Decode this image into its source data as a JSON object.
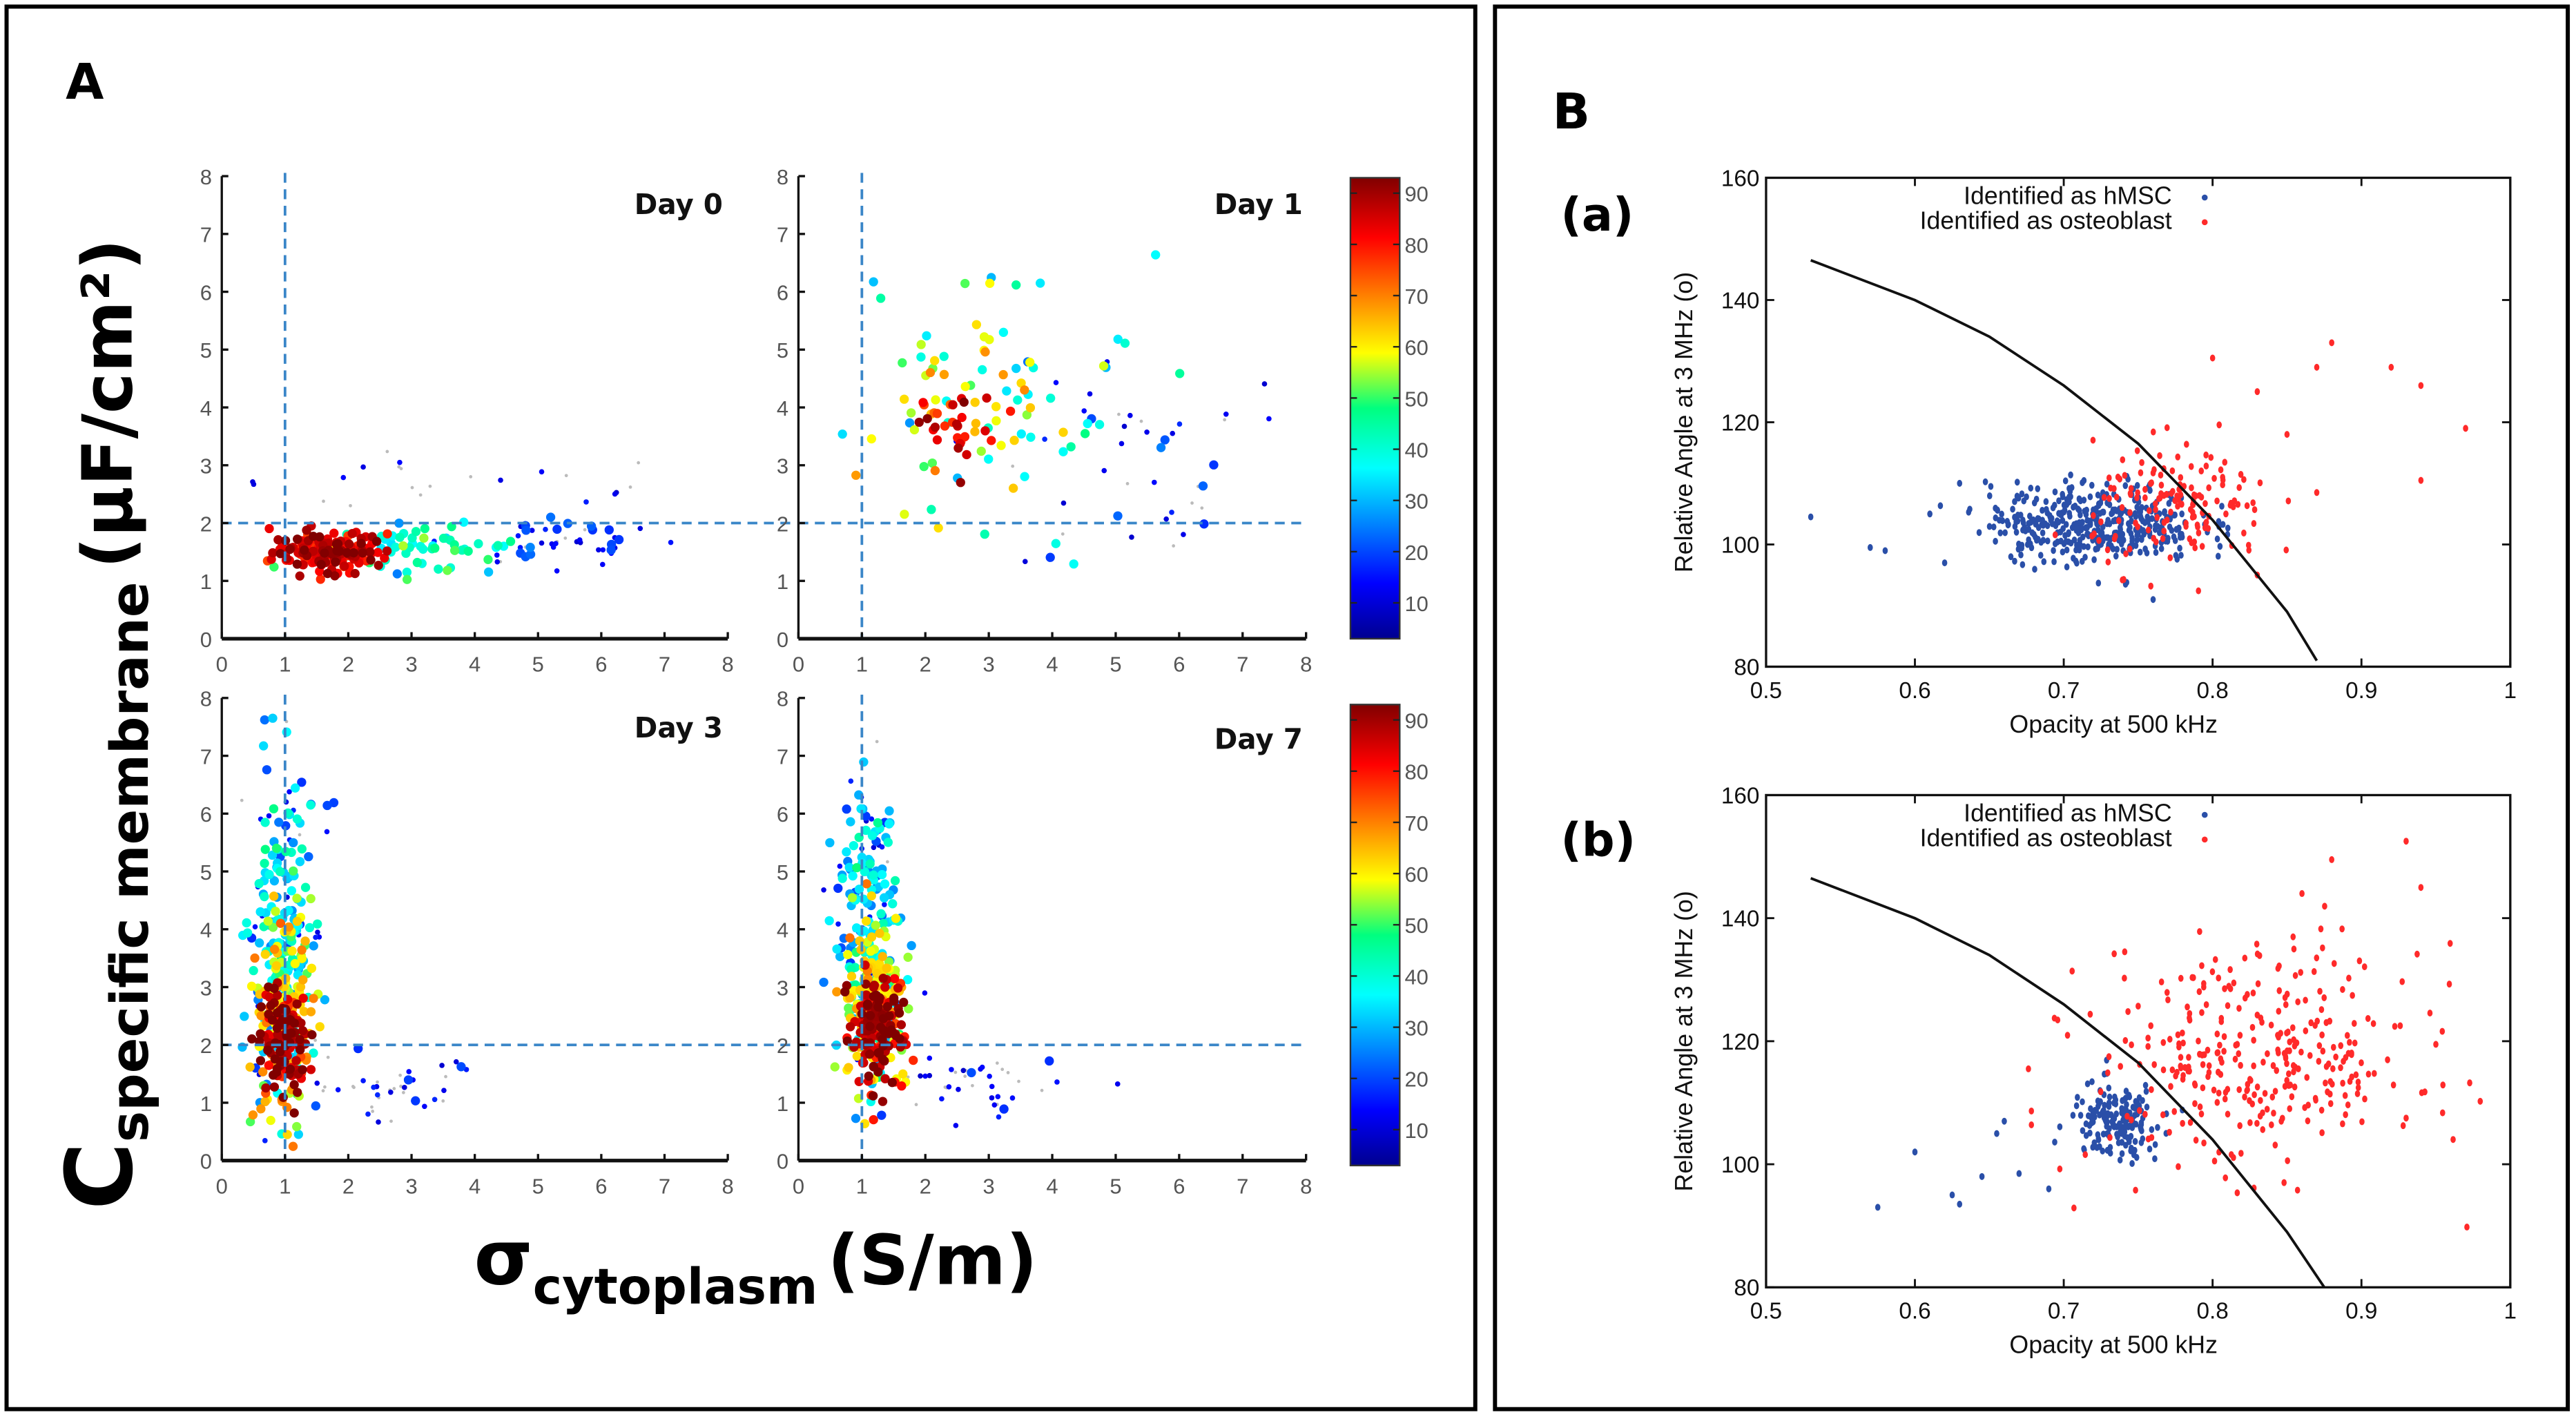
{
  "panel_A": {
    "label": "A",
    "ylabel_main": "C",
    "ylabel_sub": "specific membrane",
    "ylabel_unit": "(µF/cm²)",
    "xlabel_main": "σ",
    "xlabel_sub": "cytoplasm",
    "xlabel_unit": "(S/m)"
  },
  "panel_B": {
    "label": "B"
  },
  "chart_data": [
    {
      "type": "scatter",
      "title": "Day 0",
      "xlabel": "σ cytoplasm (S/m)",
      "ylabel": "C specific membrane (µF/cm²)",
      "xlim": [
        0,
        8
      ],
      "ylim": [
        0,
        8
      ],
      "xticks": [
        "0",
        "1",
        "2",
        "3",
        "4",
        "5",
        "6",
        "7",
        "8"
      ],
      "yticks": [
        "0",
        "1",
        "2",
        "3",
        "4",
        "5",
        "6",
        "7",
        "8"
      ],
      "reference_lines": {
        "x": 1,
        "y": 2
      },
      "color_scale": "density (jet)",
      "clusters": [
        {
          "x": 1.7,
          "y": 1.5,
          "sx": 0.45,
          "sy": 0.18,
          "n": 160,
          "density": 85
        },
        {
          "x": 3.2,
          "y": 1.55,
          "sx": 0.7,
          "sy": 0.2,
          "n": 60,
          "density": 40
        },
        {
          "x": 5.2,
          "y": 1.7,
          "sx": 0.9,
          "sy": 0.25,
          "n": 50,
          "density": 12
        },
        {
          "x": 3.5,
          "y": 2.6,
          "sx": 2.0,
          "sy": 0.3,
          "n": 25,
          "density": 3
        }
      ]
    },
    {
      "type": "scatter",
      "title": "Day 1",
      "xlim": [
        0,
        8
      ],
      "ylim": [
        0,
        8
      ],
      "xticks": [
        "0",
        "1",
        "2",
        "3",
        "4",
        "5",
        "6",
        "7",
        "8"
      ],
      "yticks": [
        "0",
        "1",
        "2",
        "3",
        "4",
        "5",
        "6",
        "7",
        "8"
      ],
      "reference_lines": {
        "x": 1,
        "y": 2
      },
      "color_scale": "density (jet)",
      "clusters": [
        {
          "x": 2.5,
          "y": 3.7,
          "sx": 0.35,
          "sy": 0.35,
          "n": 30,
          "density": 85
        },
        {
          "x": 2.6,
          "y": 4.0,
          "sx": 0.7,
          "sy": 0.9,
          "n": 45,
          "density": 60
        },
        {
          "x": 3.2,
          "y": 4.0,
          "sx": 1.2,
          "sy": 1.3,
          "n": 40,
          "density": 35
        },
        {
          "x": 5.5,
          "y": 3.3,
          "sx": 1.6,
          "sy": 1.2,
          "n": 45,
          "density": 10
        }
      ]
    },
    {
      "type": "scatter",
      "title": "Day 3",
      "xlim": [
        0,
        8
      ],
      "ylim": [
        0,
        8
      ],
      "xticks": [
        "0",
        "1",
        "2",
        "3",
        "4",
        "5",
        "6",
        "7",
        "8"
      ],
      "yticks": [
        "0",
        "1",
        "2",
        "3",
        "4",
        "5",
        "6",
        "7",
        "8"
      ],
      "reference_lines": {
        "x": 1,
        "y": 2
      },
      "color_scale": "density (jet)",
      "clusters": [
        {
          "x": 1.0,
          "y": 2.0,
          "sx": 0.18,
          "sy": 0.45,
          "n": 150,
          "density": 88
        },
        {
          "x": 1.0,
          "y": 2.6,
          "sx": 0.25,
          "sy": 0.9,
          "n": 150,
          "density": 60
        },
        {
          "x": 0.95,
          "y": 3.8,
          "sx": 0.25,
          "sy": 1.4,
          "n": 150,
          "density": 32
        },
        {
          "x": 1.0,
          "y": 4.5,
          "sx": 0.35,
          "sy": 2.0,
          "n": 60,
          "density": 12
        },
        {
          "x": 2.6,
          "y": 1.2,
          "sx": 0.6,
          "sy": 0.35,
          "n": 40,
          "density": 8
        }
      ]
    },
    {
      "type": "scatter",
      "title": "Day 7",
      "xlim": [
        0,
        8
      ],
      "ylim": [
        0,
        8
      ],
      "xticks": [
        "0",
        "1",
        "2",
        "3",
        "4",
        "5",
        "6",
        "7",
        "8"
      ],
      "yticks": [
        "0",
        "1",
        "2",
        "3",
        "4",
        "5",
        "6",
        "7",
        "8"
      ],
      "reference_lines": {
        "x": 1,
        "y": 2
      },
      "color_scale": "density (jet)",
      "clusters": [
        {
          "x": 1.25,
          "y": 2.2,
          "sx": 0.2,
          "sy": 0.45,
          "n": 150,
          "density": 88
        },
        {
          "x": 1.2,
          "y": 2.8,
          "sx": 0.25,
          "sy": 0.8,
          "n": 150,
          "density": 60
        },
        {
          "x": 1.1,
          "y": 3.8,
          "sx": 0.25,
          "sy": 1.1,
          "n": 140,
          "density": 32
        },
        {
          "x": 1.0,
          "y": 4.5,
          "sx": 0.3,
          "sy": 1.6,
          "n": 50,
          "density": 12
        },
        {
          "x": 2.7,
          "y": 1.3,
          "sx": 0.65,
          "sy": 0.3,
          "n": 40,
          "density": 8
        }
      ]
    },
    {
      "type": "heatmap",
      "title": "colorbar",
      "range": [
        3,
        93
      ],
      "ticks": [
        "10",
        "20",
        "30",
        "40",
        "50",
        "60",
        "70",
        "80",
        "90"
      ]
    },
    {
      "type": "scatter",
      "title": "(a)",
      "xlabel": "Opacity at 500 kHz",
      "ylabel": "Relative Angle at 3 MHz (o)",
      "xlim": [
        0.5,
        1.0
      ],
      "ylim": [
        80,
        160
      ],
      "xticks": [
        "0.5",
        "0.6",
        "0.7",
        "0.8",
        "0.9",
        "1"
      ],
      "yticks": [
        "80",
        "100",
        "120",
        "140",
        "160"
      ],
      "legend": [
        "Identified as hMSC",
        "Identified as osteoblast"
      ],
      "legend_position": "top-right",
      "series": [
        {
          "name": "Identified as hMSC",
          "color": "#2a4fa8",
          "center": [
            0.72,
            103.5
          ],
          "spread": [
            0.035,
            3.2
          ],
          "n": 420,
          "outliers": [
            [
              0.53,
              104.5
            ],
            [
              0.57,
              99.5
            ],
            [
              0.58,
              99
            ],
            [
              0.61,
              105
            ],
            [
              0.63,
              110
            ],
            [
              0.62,
              97
            ],
            [
              0.76,
              91
            ]
          ]
        },
        {
          "name": "Identified as osteoblast",
          "color": "#ff2a2a",
          "center": [
            0.78,
            106
          ],
          "spread": [
            0.03,
            5
          ],
          "n": 150,
          "outliers": [
            [
              0.88,
              133
            ],
            [
              0.8,
              130.5
            ],
            [
              0.87,
              129
            ],
            [
              0.92,
              129
            ],
            [
              0.94,
              126
            ],
            [
              0.83,
              125
            ],
            [
              0.97,
              119
            ],
            [
              0.94,
              110.5
            ],
            [
              0.87,
              108.5
            ],
            [
              0.83,
              95
            ],
            [
              0.85,
              118
            ]
          ]
        }
      ],
      "boundary_curve": [
        [
          0.53,
          146.5
        ],
        [
          0.6,
          140
        ],
        [
          0.65,
          134
        ],
        [
          0.7,
          126
        ],
        [
          0.75,
          116.5
        ],
        [
          0.8,
          104
        ],
        [
          0.85,
          89
        ],
        [
          0.87,
          81
        ]
      ]
    },
    {
      "type": "scatter",
      "title": "(b)",
      "xlabel": "Opacity at 500 kHz",
      "ylabel": "Relative Angle at 3 MHz (o)",
      "xlim": [
        0.5,
        1.0
      ],
      "ylim": [
        80,
        160
      ],
      "xticks": [
        "0.5",
        "0.6",
        "0.7",
        "0.8",
        "0.9",
        "1"
      ],
      "yticks": [
        "80",
        "100",
        "120",
        "140",
        "160"
      ],
      "legend": [
        "Identified as hMSC",
        "Identified as osteoblast"
      ],
      "legend_position": "top-right",
      "series": [
        {
          "name": "Identified as hMSC",
          "color": "#2a4fa8",
          "center": [
            0.735,
            107
          ],
          "spread": [
            0.015,
            3
          ],
          "n": 170,
          "outliers": [
            [
              0.575,
              93
            ],
            [
              0.6,
              102
            ],
            [
              0.625,
              95
            ],
            [
              0.63,
              93.5
            ],
            [
              0.645,
              98
            ],
            [
              0.655,
              105
            ],
            [
              0.67,
              98.5
            ],
            [
              0.69,
              96
            ],
            [
              0.66,
              107
            ]
          ]
        },
        {
          "name": "Identified as osteoblast",
          "color": "#ff2a2a",
          "center": [
            0.83,
            117
          ],
          "spread": [
            0.055,
            9
          ],
          "n": 330,
          "outliers": [
            [
              0.93,
              152.5
            ],
            [
              0.94,
              145
            ],
            [
              0.88,
              149.5
            ],
            [
              0.86,
              144
            ],
            [
              0.93,
              107.5
            ],
            [
              0.95,
              119.5
            ]
          ]
        }
      ],
      "boundary_curve": [
        [
          0.53,
          146.5
        ],
        [
          0.6,
          140
        ],
        [
          0.65,
          134
        ],
        [
          0.7,
          126
        ],
        [
          0.75,
          116.5
        ],
        [
          0.8,
          104
        ],
        [
          0.85,
          89
        ],
        [
          0.875,
          80
        ]
      ]
    }
  ]
}
